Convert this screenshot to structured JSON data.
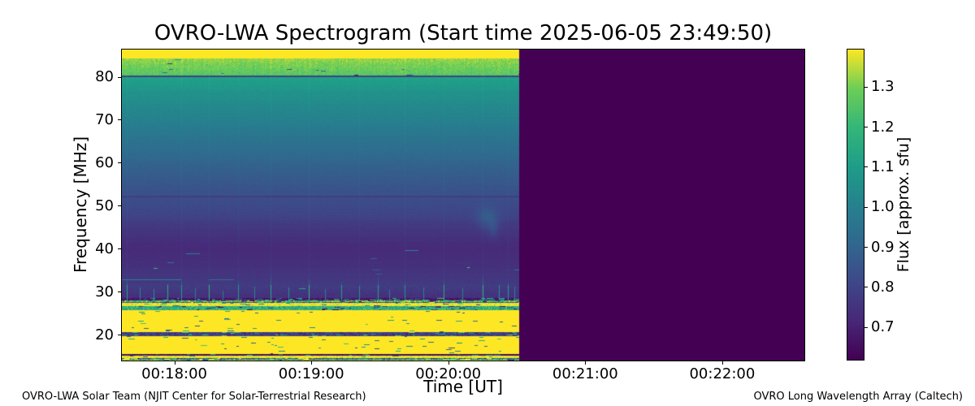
{
  "title": "OVRO-LWA Spectrogram (Start time 2025-06-05 23:49:50)",
  "footer": {
    "left": "OVRO-LWA Solar Team (NJIT Center for Solar-Terrestrial Research)",
    "right": "OVRO Long Wavelength Array (Caltech)"
  },
  "chart_data": {
    "type": "heatmap",
    "title": "OVRO-LWA Spectrogram (Start time 2025-06-05 23:49:50)",
    "xlabel": "Time [UT]",
    "ylabel": "Frequency [MHz]",
    "colormap": "viridis",
    "grid": false,
    "x_window": {
      "start": "00:17:37",
      "end": "00:22:36",
      "duration_s": 299,
      "data_end": "00:20:31",
      "data_end_s": 174
    },
    "x_ticks": [
      {
        "label": "00:18:00",
        "s": 23
      },
      {
        "label": "00:19:00",
        "s": 83
      },
      {
        "label": "00:20:00",
        "s": 143
      },
      {
        "label": "00:21:00",
        "s": 203
      },
      {
        "label": "00:22:00",
        "s": 263
      }
    ],
    "y_range_mhz": [
      13.95,
      86.33
    ],
    "y_ticks": [
      20,
      30,
      40,
      50,
      60,
      70,
      80
    ],
    "flux_range": [
      0.618,
      1.393
    ],
    "no_data_flux": 0.618,
    "colorbar": {
      "label": "Flux [approx. sfu]",
      "ticks": [
        0.7,
        0.8,
        0.9,
        1.0,
        1.1,
        1.2,
        1.3
      ]
    },
    "freq_bands_flux": [
      {
        "f": [
          86.33,
          84.2
        ],
        "v": [
          1.46,
          1.43
        ],
        "n": 0.02,
        "sp": 0
      },
      {
        "f": [
          84.2,
          80.2
        ],
        "v": [
          1.32,
          1.26
        ],
        "n": 0.05,
        "sp": 0.002
      },
      {
        "f": [
          80.2,
          79.85
        ],
        "v": [
          0.79,
          0.79
        ],
        "n": 0.012,
        "sp": 0
      },
      {
        "f": [
          79.85,
          76.0
        ],
        "v": [
          1.115,
          1.06
        ],
        "n": 0.022,
        "sp": 0
      },
      {
        "f": [
          76.0,
          70.0
        ],
        "v": [
          1.06,
          1.0
        ],
        "n": 0.02,
        "sp": 0
      },
      {
        "f": [
          70.0,
          64.0
        ],
        "v": [
          1.0,
          0.94
        ],
        "n": 0.018,
        "sp": 0
      },
      {
        "f": [
          64.0,
          58.0
        ],
        "v": [
          0.94,
          0.878
        ],
        "n": 0.016,
        "sp": 0
      },
      {
        "f": [
          58.0,
          53.5
        ],
        "v": [
          0.878,
          0.842
        ],
        "n": 0.015,
        "sp": 0
      },
      {
        "f": [
          53.5,
          52.25
        ],
        "v": [
          0.842,
          0.838
        ],
        "n": 0.014,
        "sp": 0
      },
      {
        "f": [
          52.25,
          51.95
        ],
        "v": [
          0.775,
          0.775
        ],
        "n": 0.01,
        "sp": 0
      },
      {
        "f": [
          51.95,
          48.0
        ],
        "v": [
          0.825,
          0.8
        ],
        "n": 0.015,
        "sp": 0
      },
      {
        "f": [
          48.0,
          44.0
        ],
        "v": [
          0.8,
          0.752
        ],
        "n": 0.014,
        "sp": 0
      },
      {
        "f": [
          44.0,
          40.0
        ],
        "v": [
          0.752,
          0.724
        ],
        "n": 0.012,
        "sp": 0
      },
      {
        "f": [
          40.0,
          36.0
        ],
        "v": [
          0.724,
          0.737
        ],
        "n": 0.012,
        "sp": 0
      },
      {
        "f": [
          36.0,
          31.5
        ],
        "v": [
          0.74,
          0.768
        ],
        "n": 0.014,
        "sp": 0.001
      },
      {
        "f": [
          31.5,
          28.45
        ],
        "v": [
          0.775,
          0.738
        ],
        "n": 0.03,
        "sp": 0.002
      },
      {
        "f": [
          28.45,
          27.95
        ],
        "v": [
          0.675,
          0.675
        ],
        "n": 0.06,
        "sp": 0.12
      },
      {
        "f": [
          27.95,
          27.55
        ],
        "v": [
          1.24,
          1.24
        ],
        "n": 0.3,
        "sp": 0.18
      },
      {
        "f": [
          27.55,
          27.3
        ],
        "v": [
          0.86,
          0.86
        ],
        "n": 0.32,
        "sp": 0.1
      },
      {
        "f": [
          27.3,
          26.6
        ],
        "v": [
          1.41,
          1.41
        ],
        "n": 0.13,
        "sp": 0.05
      },
      {
        "f": [
          26.6,
          25.7
        ],
        "v": [
          1.16,
          1.16
        ],
        "n": 0.18,
        "sp": 0.06
      },
      {
        "f": [
          25.7,
          20.65
        ],
        "v": [
          1.44,
          1.44
        ],
        "n": 0.05,
        "sp": 0.012
      },
      {
        "f": [
          20.65,
          19.6
        ],
        "v": [
          0.78,
          0.78
        ],
        "n": 0.15,
        "sp": 0.1
      },
      {
        "f": [
          19.6,
          15.55
        ],
        "v": [
          1.44,
          1.44
        ],
        "n": 0.045,
        "sp": 0.018
      },
      {
        "f": [
          15.55,
          15.15
        ],
        "v": [
          0.645,
          0.645
        ],
        "n": 0.07,
        "sp": 0.05
      },
      {
        "f": [
          15.15,
          14.55
        ],
        "v": [
          1.4,
          1.4
        ],
        "n": 0.12,
        "sp": 0.05
      },
      {
        "f": [
          14.55,
          14.1
        ],
        "v": [
          0.92,
          0.92
        ],
        "n": 0.38,
        "sp": 0.15
      },
      {
        "f": [
          14.1,
          13.95
        ],
        "v": [
          1.33,
          1.33
        ],
        "n": 0.12,
        "sp": 0.05
      }
    ],
    "rfi_streaks": [
      {
        "s": 2,
        "topF": 33.5,
        "v": 1.12
      },
      {
        "s": 8,
        "topF": 31.0,
        "v": 1.02
      },
      {
        "s": 14,
        "topF": 30.5,
        "v": 1.05
      },
      {
        "s": 20,
        "topF": 32.0,
        "v": 1.15
      },
      {
        "s": 26,
        "topF": 34.0,
        "v": 1.1
      },
      {
        "s": 32,
        "topF": 30.8,
        "v": 1.0
      },
      {
        "s": 38,
        "topF": 31.8,
        "v": 1.18
      },
      {
        "s": 44,
        "topF": 30.2,
        "v": 1.0
      },
      {
        "s": 51,
        "topF": 33.0,
        "v": 1.08
      },
      {
        "s": 58,
        "topF": 31.2,
        "v": 1.02
      },
      {
        "s": 65,
        "topF": 35.5,
        "v": 1.15
      },
      {
        "s": 73,
        "topF": 31.0,
        "v": 1.05
      },
      {
        "s": 82,
        "topF": 33.8,
        "v": 1.2
      },
      {
        "s": 89,
        "topF": 30.6,
        "v": 1.0
      },
      {
        "s": 96,
        "topF": 32.5,
        "v": 1.1
      },
      {
        "s": 104,
        "topF": 31.4,
        "v": 1.05
      },
      {
        "s": 112,
        "topF": 34.2,
        "v": 1.12
      },
      {
        "s": 117,
        "topF": 30.4,
        "v": 0.98
      },
      {
        "s": 124,
        "topF": 32.8,
        "v": 1.07
      },
      {
        "s": 132,
        "topF": 31.0,
        "v": 1.0
      },
      {
        "s": 141,
        "topF": 33.2,
        "v": 1.15
      },
      {
        "s": 149,
        "topF": 30.8,
        "v": 1.0
      },
      {
        "s": 158,
        "topF": 34.5,
        "v": 1.18
      },
      {
        "s": 165,
        "topF": 31.6,
        "v": 1.05
      },
      {
        "s": 169,
        "topF": 32.2,
        "v": 1.1
      },
      {
        "s": 172,
        "topF": 31.2,
        "v": 1.0
      }
    ],
    "ghost_columns_s": [
      2,
      26,
      38,
      51,
      65,
      82,
      104,
      124,
      141,
      158,
      169
    ],
    "ghost_strength": 0.022,
    "h_dashes": [
      {
        "s": 28,
        "f": 38.9,
        "w": 6,
        "v": 1.0
      },
      {
        "s": 124,
        "f": 39.7,
        "w": 6,
        "v": 1.0
      },
      {
        "s": 20,
        "f": 36.9,
        "w": 3,
        "v": 0.95
      },
      {
        "s": 0,
        "f": 32.9,
        "w": 26,
        "v": 1.0
      },
      {
        "s": 38,
        "f": 32.9,
        "w": 11,
        "v": 0.93
      },
      {
        "s": 109,
        "f": 37.8,
        "w": 3,
        "v": 0.9
      },
      {
        "s": 110,
        "f": 35.1,
        "w": 3,
        "v": 0.88
      },
      {
        "s": 111,
        "f": 34.2,
        "w": 3,
        "v": 0.88
      }
    ],
    "blobs": [
      {
        "s": 160,
        "f": 47.2,
        "rs": 4.5,
        "rf": 2.6,
        "dv": 0.08
      },
      {
        "s": 162.5,
        "f": 44.6,
        "rs": 2.2,
        "rf": 2.2,
        "dv": 0.05
      }
    ],
    "viridis_anchors": [
      "#440154",
      "#482878",
      "#3e4989",
      "#31688e",
      "#26828e",
      "#1f9e89",
      "#35b779",
      "#6ece58",
      "#fde725"
    ]
  }
}
